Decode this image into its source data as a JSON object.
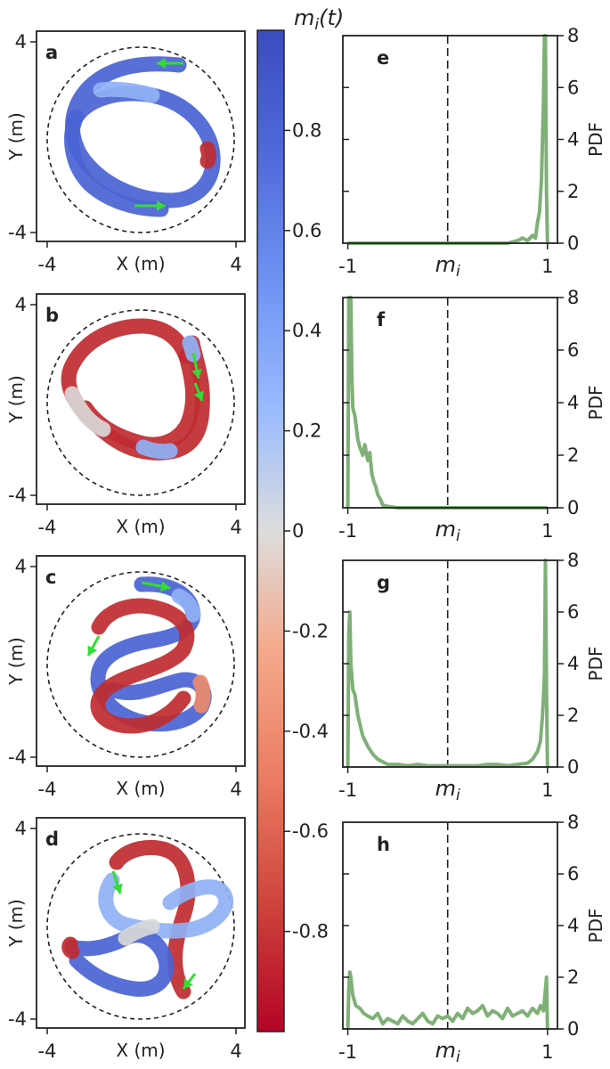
{
  "colorbar": {
    "label": "m_i(t)",
    "ticks": [
      "0.8",
      "0.6",
      "0.4",
      "0.2",
      "0",
      "-0.2",
      "-0.4",
      "-0.6",
      "-0.8"
    ],
    "tick_values": [
      0.8,
      0.6,
      0.4,
      0.2,
      0,
      -0.2,
      -0.4,
      -0.6,
      -0.8
    ],
    "range": [
      -1,
      1
    ],
    "colormap": "coolwarm",
    "colors": {
      "high": "#3b4cc0",
      "mid": "#dddddd",
      "low": "#b40426"
    }
  },
  "trajectory_panels": [
    {
      "letter": "a",
      "xlabel": "X (m)",
      "ylabel": "Y (m)",
      "xticks": [
        "-4",
        "4"
      ],
      "yticks": [
        "4",
        "-4"
      ]
    },
    {
      "letter": "b",
      "xlabel": "X (m)",
      "ylabel": "Y (m)",
      "xticks": [
        "-4",
        "4"
      ],
      "yticks": [
        "4",
        "-4"
      ]
    },
    {
      "letter": "c",
      "xlabel": "X (m)",
      "ylabel": "Y (m)",
      "xticks": [
        "-4",
        "4"
      ],
      "yticks": [
        "4",
        "-4"
      ]
    },
    {
      "letter": "d",
      "xlabel": "X (m)",
      "ylabel": "Y (m)",
      "xticks": [
        "-4",
        "4"
      ],
      "yticks": [
        "4",
        "-4"
      ]
    }
  ],
  "pdf_panels": [
    {
      "letter": "e",
      "xlabel": "m_i",
      "ylabel": "PDF",
      "xticks": [
        "-1",
        "1"
      ],
      "yticks": [
        "0",
        "2",
        "4",
        "6",
        "8"
      ]
    },
    {
      "letter": "f",
      "xlabel": "m_i",
      "ylabel": "PDF",
      "xticks": [
        "-1",
        "1"
      ],
      "yticks": [
        "0",
        "2",
        "4",
        "6",
        "8"
      ]
    },
    {
      "letter": "g",
      "xlabel": "m_i",
      "ylabel": "PDF",
      "xticks": [
        "-1",
        "1"
      ],
      "yticks": [
        "0",
        "2",
        "4",
        "6",
        "8"
      ]
    },
    {
      "letter": "h",
      "xlabel": "m_i",
      "ylabel": "PDF",
      "xticks": [
        "-1",
        "1"
      ],
      "yticks": [
        "0",
        "2",
        "4",
        "6",
        "8"
      ]
    }
  ],
  "chart_data": [
    {
      "type": "line",
      "panel": "e",
      "x": [
        -1,
        -0.9,
        -0.8,
        -0.6,
        -0.4,
        -0.2,
        0,
        0.2,
        0.4,
        0.6,
        0.7,
        0.75,
        0.8,
        0.85,
        0.88,
        0.9,
        0.92,
        0.94,
        0.96,
        0.97,
        0.98,
        0.99,
        1.0
      ],
      "y": [
        0,
        0,
        0,
        0,
        0,
        0,
        0,
        0,
        0,
        0,
        0.1,
        0.2,
        0.1,
        0.3,
        0.2,
        0.8,
        1.2,
        2.5,
        5.5,
        8.0,
        8.0,
        2.0,
        0
      ],
      "xlim": [
        -1.05,
        1.1
      ],
      "ylim": [
        0,
        8
      ],
      "color": "#7fb077",
      "vline": 0
    },
    {
      "type": "line",
      "panel": "f",
      "x": [
        -1.0,
        -0.99,
        -0.98,
        -0.97,
        -0.96,
        -0.95,
        -0.93,
        -0.9,
        -0.88,
        -0.85,
        -0.83,
        -0.8,
        -0.78,
        -0.76,
        -0.74,
        -0.72,
        -0.7,
        -0.67,
        -0.65,
        -0.6,
        -0.5,
        -0.3,
        0,
        0.5,
        1.0
      ],
      "y": [
        0,
        8.0,
        8.0,
        8.0,
        5.0,
        3.8,
        3.5,
        2.6,
        2.3,
        2.0,
        2.4,
        1.8,
        2.1,
        1.3,
        1.0,
        0.8,
        0.5,
        0.3,
        0.1,
        0.05,
        0,
        0,
        0,
        0,
        0
      ],
      "xlim": [
        -1.05,
        1.1
      ],
      "ylim": [
        0,
        8
      ],
      "color": "#7fb077",
      "vline": 0
    },
    {
      "type": "line",
      "panel": "g",
      "x": [
        -1.0,
        -0.99,
        -0.98,
        -0.97,
        -0.95,
        -0.93,
        -0.9,
        -0.85,
        -0.8,
        -0.75,
        -0.7,
        -0.6,
        -0.5,
        -0.4,
        -0.3,
        -0.2,
        -0.1,
        0,
        0.1,
        0.2,
        0.3,
        0.4,
        0.5,
        0.6,
        0.7,
        0.8,
        0.85,
        0.9,
        0.93,
        0.95,
        0.97,
        0.98,
        0.99,
        1.0
      ],
      "y": [
        0,
        5.2,
        6.0,
        4.0,
        3.0,
        2.8,
        2.0,
        1.2,
        0.8,
        0.5,
        0.3,
        0.1,
        0.1,
        0.05,
        0.1,
        0.05,
        0.05,
        0.05,
        0.05,
        0.05,
        0.05,
        0.1,
        0.1,
        0.05,
        0.1,
        0.15,
        0.3,
        0.6,
        1.0,
        2.0,
        3.5,
        8.0,
        3.0,
        0
      ],
      "xlim": [
        -1.05,
        1.1
      ],
      "ylim": [
        0,
        8
      ],
      "color": "#7fb077",
      "vline": 0
    },
    {
      "type": "line",
      "panel": "h",
      "x": [
        -1.0,
        -0.99,
        -0.98,
        -0.97,
        -0.95,
        -0.92,
        -0.88,
        -0.84,
        -0.8,
        -0.75,
        -0.7,
        -0.65,
        -0.6,
        -0.55,
        -0.5,
        -0.45,
        -0.4,
        -0.35,
        -0.3,
        -0.25,
        -0.2,
        -0.15,
        -0.1,
        -0.05,
        0,
        0.05,
        0.1,
        0.15,
        0.2,
        0.25,
        0.3,
        0.35,
        0.4,
        0.45,
        0.5,
        0.55,
        0.6,
        0.65,
        0.7,
        0.75,
        0.8,
        0.85,
        0.9,
        0.93,
        0.96,
        0.98,
        0.99,
        1.0
      ],
      "y": [
        0,
        1.6,
        2.2,
        2.0,
        1.3,
        0.9,
        0.8,
        0.6,
        0.5,
        0.4,
        0.6,
        0.2,
        0.4,
        0.3,
        0.2,
        0.5,
        0.3,
        0.2,
        0.4,
        0.6,
        0.3,
        0.2,
        0.5,
        0.4,
        0.5,
        0.3,
        0.6,
        0.4,
        0.8,
        0.6,
        0.7,
        0.9,
        0.5,
        0.7,
        0.6,
        0.4,
        0.8,
        0.5,
        0.6,
        0.7,
        0.5,
        0.8,
        0.6,
        0.9,
        0.7,
        1.5,
        2.0,
        0
      ],
      "xlim": [
        -1.05,
        1.1
      ],
      "ylim": [
        0,
        8
      ],
      "color": "#7fb077",
      "vline": 0
    }
  ]
}
